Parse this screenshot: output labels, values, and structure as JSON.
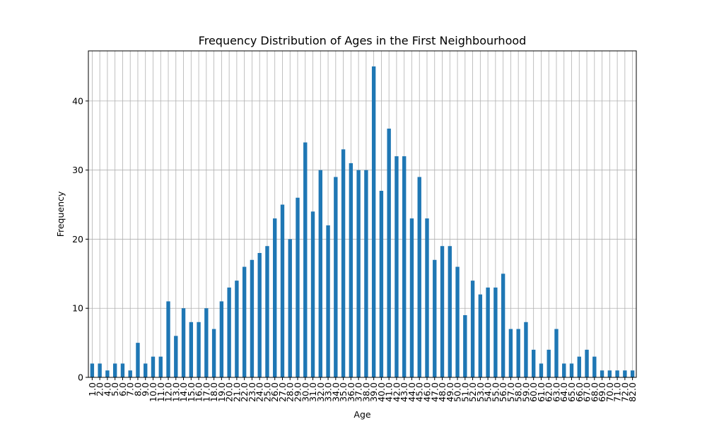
{
  "chart_data": {
    "type": "bar",
    "title": "Frequency Distribution of Ages in the First Neighbourhood",
    "xlabel": "Age",
    "ylabel": "Frequency",
    "ylim": [
      0,
      47.25
    ],
    "yticks": [
      0,
      10,
      20,
      30,
      40
    ],
    "grid": true,
    "bar_color": "#1f77b4",
    "categories": [
      "1.0",
      "2.0",
      "4.0",
      "5.0",
      "6.0",
      "7.0",
      "8.0",
      "9.0",
      "10.0",
      "11.0",
      "12.0",
      "13.0",
      "14.0",
      "15.0",
      "16.0",
      "17.0",
      "18.0",
      "19.0",
      "20.0",
      "21.0",
      "22.0",
      "23.0",
      "24.0",
      "25.0",
      "26.0",
      "27.0",
      "28.0",
      "29.0",
      "30.0",
      "31.0",
      "32.0",
      "33.0",
      "34.0",
      "35.0",
      "36.0",
      "37.0",
      "38.0",
      "39.0",
      "40.0",
      "41.0",
      "42.0",
      "43.0",
      "44.0",
      "45.0",
      "46.0",
      "47.0",
      "48.0",
      "49.0",
      "50.0",
      "51.0",
      "52.0",
      "53.0",
      "54.0",
      "55.0",
      "56.0",
      "57.0",
      "58.0",
      "59.0",
      "60.0",
      "61.0",
      "62.0",
      "63.0",
      "64.0",
      "65.0",
      "66.0",
      "67.0",
      "68.0",
      "69.0",
      "70.0",
      "71.0",
      "72.0",
      "82.0"
    ],
    "values": [
      2,
      2,
      1,
      2,
      2,
      1,
      5,
      2,
      3,
      3,
      11,
      6,
      10,
      8,
      8,
      10,
      7,
      11,
      13,
      14,
      16,
      17,
      18,
      19,
      23,
      25,
      20,
      26,
      34,
      24,
      30,
      22,
      29,
      33,
      31,
      30,
      30,
      45,
      27,
      36,
      32,
      32,
      23,
      29,
      23,
      17,
      19,
      19,
      16,
      9,
      14,
      12,
      13,
      13,
      15,
      7,
      7,
      8,
      4,
      2,
      4,
      7,
      2,
      2,
      3,
      4,
      3,
      1,
      1,
      1,
      1,
      1
    ]
  }
}
